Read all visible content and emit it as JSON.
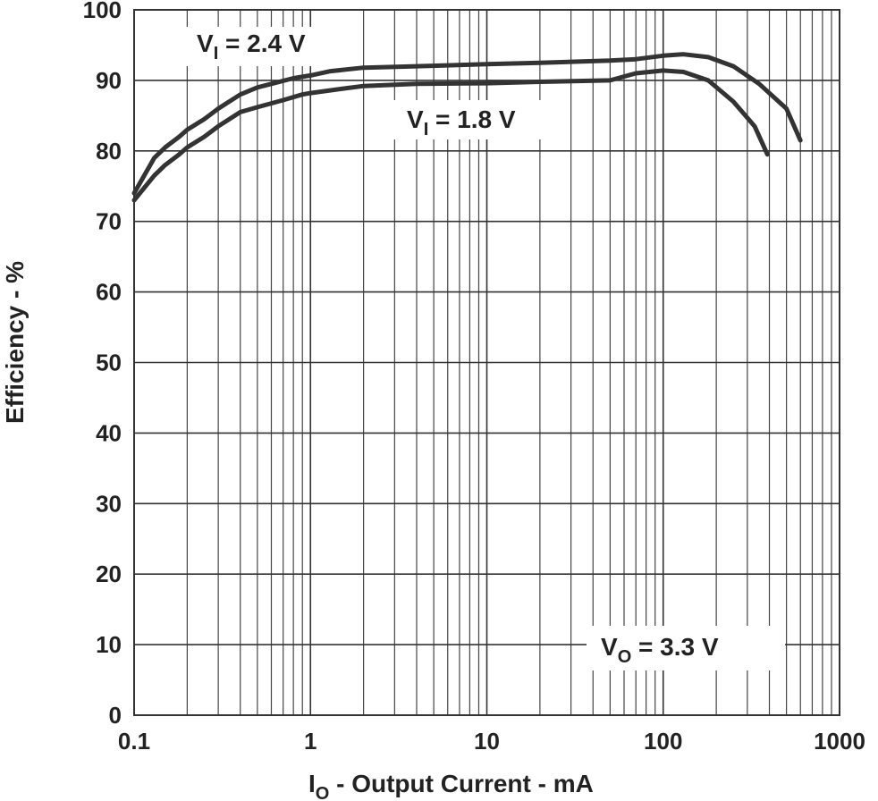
{
  "chart_data": {
    "type": "line",
    "x_scale": "log",
    "xlim": [
      0.1,
      1000
    ],
    "ylim": [
      0,
      100
    ],
    "grid": true,
    "xticks": [
      "0.1",
      "1",
      "10",
      "100",
      "1000"
    ],
    "yticks": [
      "0",
      "10",
      "20",
      "30",
      "40",
      "50",
      "60",
      "70",
      "80",
      "90",
      "100"
    ],
    "xlabel": {
      "main": "I",
      "sub": "O",
      "rest": " - Output Current - mA"
    },
    "ylabel": "Efficiency - %",
    "series": [
      {
        "label": {
          "main": "V",
          "sub": "I",
          "rest": " = 2.4 V"
        },
        "color": "#333333",
        "points": [
          [
            0.1,
            74
          ],
          [
            0.13,
            79
          ],
          [
            0.15,
            80.5
          ],
          [
            0.18,
            82
          ],
          [
            0.2,
            83
          ],
          [
            0.25,
            84.5
          ],
          [
            0.3,
            86
          ],
          [
            0.4,
            88
          ],
          [
            0.5,
            89
          ],
          [
            0.6,
            89.5
          ],
          [
            0.8,
            90.3
          ],
          [
            1,
            90.7
          ],
          [
            1.3,
            91.3
          ],
          [
            2,
            91.8
          ],
          [
            4,
            92
          ],
          [
            10,
            92.3
          ],
          [
            20,
            92.5
          ],
          [
            50,
            92.8
          ],
          [
            70,
            93
          ],
          [
            100,
            93.5
          ],
          [
            130,
            93.7
          ],
          [
            180,
            93.3
          ],
          [
            250,
            92
          ],
          [
            350,
            89.5
          ],
          [
            500,
            86
          ],
          [
            600,
            81.5
          ]
        ]
      },
      {
        "label": {
          "main": "V",
          "sub": "I",
          "rest": " = 1.8 V"
        },
        "color": "#333333",
        "points": [
          [
            0.1,
            73
          ],
          [
            0.13,
            76.5
          ],
          [
            0.15,
            78
          ],
          [
            0.18,
            79.5
          ],
          [
            0.2,
            80.5
          ],
          [
            0.25,
            82
          ],
          [
            0.3,
            83.5
          ],
          [
            0.4,
            85.5
          ],
          [
            0.5,
            86.2
          ],
          [
            0.7,
            87.2
          ],
          [
            0.9,
            88
          ],
          [
            1,
            88.2
          ],
          [
            1.5,
            88.8
          ],
          [
            2,
            89.2
          ],
          [
            4,
            89.5
          ],
          [
            10,
            89.6
          ],
          [
            20,
            89.8
          ],
          [
            50,
            90
          ],
          [
            70,
            91
          ],
          [
            100,
            91.4
          ],
          [
            130,
            91.2
          ],
          [
            180,
            90
          ],
          [
            250,
            87
          ],
          [
            330,
            83.5
          ],
          [
            390,
            79.5
          ]
        ]
      }
    ],
    "annotations": [
      {
        "main": "V",
        "sub": "O",
        "rest": " = 3.3 V"
      }
    ]
  }
}
